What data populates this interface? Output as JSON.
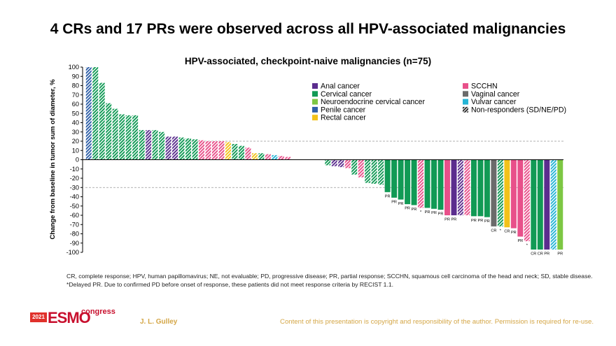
{
  "slide_title": "4 CRs and 17 PRs were observed across all HPV-associated malignancies",
  "colors": {
    "anal": "#5b2d8e",
    "cervical": "#119a55",
    "neuroendocrine": "#7dc743",
    "penile": "#2e5fa8",
    "rectal": "#f2c21a",
    "scchn": "#e8508a",
    "vaginal": "#6b6b6b",
    "vulvar": "#26b5d6"
  },
  "chart_data": {
    "type": "bar",
    "title": "HPV-associated, checkpoint-naive malignancies (n=75)",
    "xlabel": "",
    "ylabel": "Change from baseline in tumor sum of diameter, %",
    "ylim": [
      -100,
      100
    ],
    "yticks": [
      100,
      90,
      80,
      70,
      60,
      50,
      40,
      30,
      20,
      10,
      0,
      -10,
      -20,
      -30,
      -40,
      -50,
      -60,
      -70,
      -80,
      -90,
      -100
    ],
    "reference_lines": [
      20,
      -30
    ],
    "legend": [
      {
        "key": "anal",
        "label": "Anal cancer"
      },
      {
        "key": "cervical",
        "label": "Cervical cancer"
      },
      {
        "key": "neuroendocrine",
        "label": "Neuroendocrine cervical cancer"
      },
      {
        "key": "penile",
        "label": "Penile cancer"
      },
      {
        "key": "rectal",
        "label": "Rectal cancer"
      },
      {
        "key": "scchn",
        "label": "SCCHN"
      },
      {
        "key": "vaginal",
        "label": "Vaginal cancer"
      },
      {
        "key": "vulvar",
        "label": "Vulvar cancer"
      },
      {
        "key": "nonresp",
        "label": "Non-responders (SD/NE/PD)"
      }
    ],
    "bars": [
      {
        "value": 100,
        "type": "penile",
        "hatched": true,
        "label": ""
      },
      {
        "value": 100,
        "type": "cervical",
        "hatched": true,
        "label": ""
      },
      {
        "value": 83,
        "type": "cervical",
        "hatched": true,
        "label": ""
      },
      {
        "value": 61,
        "type": "cervical",
        "hatched": true,
        "label": ""
      },
      {
        "value": 55,
        "type": "cervical",
        "hatched": true,
        "label": ""
      },
      {
        "value": 49,
        "type": "cervical",
        "hatched": true,
        "label": ""
      },
      {
        "value": 48,
        "type": "cervical",
        "hatched": true,
        "label": ""
      },
      {
        "value": 48,
        "type": "cervical",
        "hatched": true,
        "label": ""
      },
      {
        "value": 32,
        "type": "cervical",
        "hatched": true,
        "label": ""
      },
      {
        "value": 32,
        "type": "anal",
        "hatched": true,
        "label": ""
      },
      {
        "value": 32,
        "type": "cervical",
        "hatched": true,
        "label": ""
      },
      {
        "value": 30,
        "type": "cervical",
        "hatched": true,
        "label": ""
      },
      {
        "value": 25,
        "type": "anal",
        "hatched": true,
        "label": ""
      },
      {
        "value": 25,
        "type": "anal",
        "hatched": true,
        "label": ""
      },
      {
        "value": 24,
        "type": "cervical",
        "hatched": true,
        "label": ""
      },
      {
        "value": 23,
        "type": "cervical",
        "hatched": true,
        "label": ""
      },
      {
        "value": 22,
        "type": "cervical",
        "hatched": true,
        "label": ""
      },
      {
        "value": 21,
        "type": "scchn",
        "hatched": true,
        "label": ""
      },
      {
        "value": 20,
        "type": "scchn",
        "hatched": true,
        "label": ""
      },
      {
        "value": 20,
        "type": "scchn",
        "hatched": true,
        "label": ""
      },
      {
        "value": 20,
        "type": "scchn",
        "hatched": true,
        "label": ""
      },
      {
        "value": 19,
        "type": "rectal",
        "hatched": true,
        "label": ""
      },
      {
        "value": 17,
        "type": "cervical",
        "hatched": true,
        "label": ""
      },
      {
        "value": 15,
        "type": "cervical",
        "hatched": true,
        "label": ""
      },
      {
        "value": 13,
        "type": "scchn",
        "hatched": true,
        "label": ""
      },
      {
        "value": 7,
        "type": "rectal",
        "hatched": true,
        "label": ""
      },
      {
        "value": 7,
        "type": "cervical",
        "hatched": true,
        "label": ""
      },
      {
        "value": 6,
        "type": "scchn",
        "hatched": true,
        "label": ""
      },
      {
        "value": 5,
        "type": "vulvar",
        "hatched": true,
        "label": ""
      },
      {
        "value": 4,
        "type": "scchn",
        "hatched": true,
        "label": ""
      },
      {
        "value": 3,
        "type": "scchn",
        "hatched": true,
        "label": ""
      },
      {
        "value": 0,
        "type": "cervical",
        "hatched": true,
        "label": ""
      },
      {
        "value": 0,
        "type": "cervical",
        "hatched": true,
        "label": ""
      },
      {
        "value": 0,
        "type": "cervical",
        "hatched": true,
        "label": ""
      },
      {
        "value": 0,
        "type": "cervical",
        "hatched": true,
        "label": ""
      },
      {
        "value": 0,
        "type": "cervical",
        "hatched": true,
        "label": ""
      },
      {
        "value": -6,
        "type": "cervical",
        "hatched": true,
        "label": ""
      },
      {
        "value": -7,
        "type": "anal",
        "hatched": true,
        "label": ""
      },
      {
        "value": -8,
        "type": "anal",
        "hatched": true,
        "label": ""
      },
      {
        "value": -9,
        "type": "scchn",
        "hatched": true,
        "label": ""
      },
      {
        "value": -16,
        "type": "cervical",
        "hatched": true,
        "label": ""
      },
      {
        "value": -19,
        "type": "scchn",
        "hatched": true,
        "label": ""
      },
      {
        "value": -25,
        "type": "cervical",
        "hatched": true,
        "label": ""
      },
      {
        "value": -26,
        "type": "cervical",
        "hatched": true,
        "label": ""
      },
      {
        "value": -27,
        "type": "cervical",
        "hatched": true,
        "label": ""
      },
      {
        "value": -35,
        "type": "cervical",
        "hatched": false,
        "label": "PR"
      },
      {
        "value": -41,
        "type": "cervical",
        "hatched": false,
        "label": "PR"
      },
      {
        "value": -43,
        "type": "cervical",
        "hatched": false,
        "label": "PR"
      },
      {
        "value": -48,
        "type": "cervical",
        "hatched": false,
        "label": "PR"
      },
      {
        "value": -49,
        "type": "cervical",
        "hatched": false,
        "label": "PR"
      },
      {
        "value": -52,
        "type": "scchn",
        "hatched": true,
        "label": "*"
      },
      {
        "value": -52,
        "type": "cervical",
        "hatched": false,
        "label": "PR"
      },
      {
        "value": -53,
        "type": "cervical",
        "hatched": false,
        "label": "PR"
      },
      {
        "value": -54,
        "type": "cervical",
        "hatched": false,
        "label": "PR"
      },
      {
        "value": -60,
        "type": "scchn",
        "hatched": false,
        "label": "PR"
      },
      {
        "value": -60,
        "type": "anal",
        "hatched": false,
        "label": "PR"
      },
      {
        "value": -60,
        "type": "anal",
        "hatched": true,
        "label": ""
      },
      {
        "value": -60,
        "type": "scchn",
        "hatched": true,
        "label": ""
      },
      {
        "value": -61,
        "type": "cervical",
        "hatched": false,
        "label": "PR"
      },
      {
        "value": -61,
        "type": "cervical",
        "hatched": false,
        "label": "PR"
      },
      {
        "value": -62,
        "type": "cervical",
        "hatched": false,
        "label": "PR"
      },
      {
        "value": -72,
        "type": "vaginal",
        "hatched": false,
        "label": "CR"
      },
      {
        "value": -72,
        "type": "cervical",
        "hatched": true,
        "label": "*"
      },
      {
        "value": -73,
        "type": "rectal",
        "hatched": false,
        "label": "CR"
      },
      {
        "value": -74,
        "type": "scchn",
        "hatched": false,
        "label": "PR"
      },
      {
        "value": -83,
        "type": "scchn",
        "hatched": false,
        "label": "PR"
      },
      {
        "value": -88,
        "type": "scchn",
        "hatched": true,
        "label": "*"
      },
      {
        "value": -97,
        "type": "cervical",
        "hatched": false,
        "label": "CR"
      },
      {
        "value": -97,
        "type": "cervical",
        "hatched": false,
        "label": "CR"
      },
      {
        "value": -97,
        "type": "anal",
        "hatched": false,
        "label": "PR"
      },
      {
        "value": -97,
        "type": "vulvar",
        "hatched": true,
        "label": ""
      },
      {
        "value": -97,
        "type": "neuroendocrine",
        "hatched": false,
        "label": "PR"
      }
    ]
  },
  "footnotes": {
    "line1": "CR, complete response; HPV, human papillomavirus; NE, not evaluable; PD, progressive disease; PR, partial response; SCCHN, squamous cell carcinoma of the head and neck; SD, stable disease.",
    "line2": "*Delayed PR. Due to confirmed PD before onset of response, these patients did not meet response criteria by RECIST 1.1."
  },
  "footer": {
    "logo_year": "2021",
    "logo_word": "ESMO",
    "logo_suffix": "congress",
    "author": "J. L. Gulley",
    "copyright": "Content of this presentation is copyright and responsibility of the author. Permission is required for re-use."
  }
}
